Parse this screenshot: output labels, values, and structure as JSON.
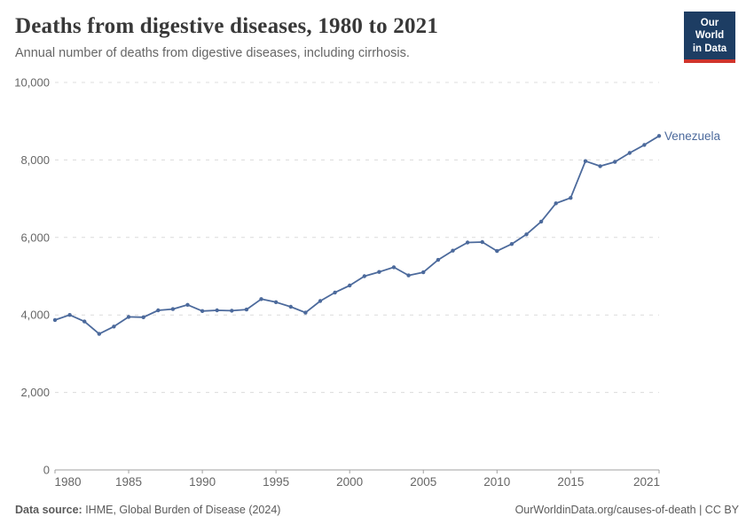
{
  "header": {
    "title": "Deaths from digestive diseases, 1980 to 2021",
    "subtitle": "Annual number of deaths from digestive diseases, including cirrhosis.",
    "logo_line1": "Our World",
    "logo_line2": "in Data"
  },
  "chart_data": {
    "type": "line",
    "title": "Deaths from digestive diseases, 1980 to 2021",
    "entity_label": "Venezuela",
    "x": [
      1980,
      1981,
      1982,
      1983,
      1984,
      1985,
      1986,
      1987,
      1988,
      1989,
      1990,
      1991,
      1992,
      1993,
      1994,
      1995,
      1996,
      1997,
      1998,
      1999,
      2000,
      2001,
      2002,
      2003,
      2004,
      2005,
      2006,
      2007,
      2008,
      2009,
      2010,
      2011,
      2012,
      2013,
      2014,
      2015,
      2016,
      2017,
      2018,
      2019,
      2020,
      2021
    ],
    "values": [
      3870,
      4000,
      3830,
      3510,
      3700,
      3950,
      3940,
      4120,
      4150,
      4260,
      4100,
      4120,
      4110,
      4140,
      4410,
      4330,
      4210,
      4060,
      4360,
      4580,
      4760,
      5000,
      5110,
      5230,
      5020,
      5100,
      5420,
      5660,
      5870,
      5880,
      5650,
      5830,
      6080,
      6410,
      6880,
      7020,
      7970,
      7840,
      7950,
      8180,
      8390,
      8620
    ],
    "xlabel": "",
    "ylabel": "",
    "xlim": [
      1980,
      2021
    ],
    "ylim": [
      0,
      10000
    ],
    "y_ticks": [
      0,
      2000,
      4000,
      6000,
      8000,
      10000
    ],
    "y_tick_labels": [
      "0",
      "2,000",
      "4,000",
      "6,000",
      "8,000",
      "10,000"
    ],
    "x_ticks": [
      1980,
      1985,
      1990,
      1995,
      2000,
      2005,
      2010,
      2015,
      2021
    ],
    "x_tick_labels": [
      "1980",
      "1985",
      "1990",
      "1995",
      "2000",
      "2005",
      "2010",
      "2015",
      "2021"
    ],
    "grid": "horizontal dashed gridlines on",
    "legend_position": "label at end of line",
    "line_color": "#4c6a9c",
    "gridline_color": "#dcdcdc",
    "axis_color": "#a1a1a1",
    "tick_label_color": "#666666"
  },
  "footer": {
    "source_label": "Data source:",
    "source_text": " IHME, Global Burden of Disease (2024)",
    "link_text": "OurWorldinData.org/causes-of-death | CC BY"
  }
}
